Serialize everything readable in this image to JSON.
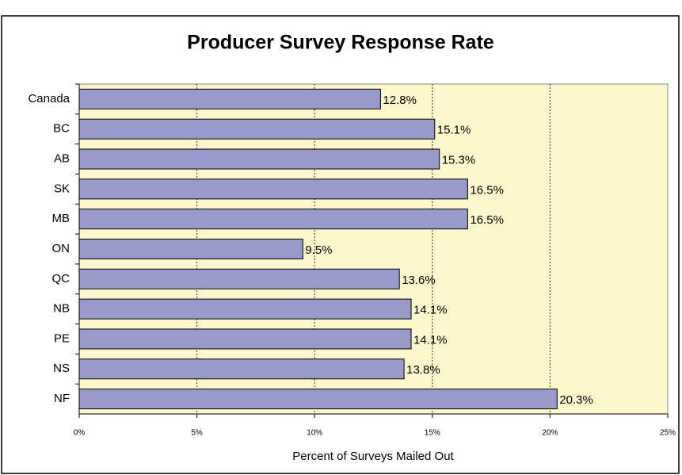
{
  "chart_data": {
    "type": "bar",
    "orientation": "horizontal",
    "title": "Producer Survey Response Rate",
    "x_label": "Percent of Surveys Mailed Out",
    "categories": [
      "Canada",
      "BC",
      "AB",
      "SK",
      "MB",
      "ON",
      "QC",
      "NB",
      "PE",
      "NS",
      "NF"
    ],
    "values": [
      12.8,
      15.1,
      15.3,
      16.5,
      16.5,
      9.5,
      13.6,
      14.1,
      14.1,
      13.8,
      20.3
    ],
    "value_labels": [
      "12.8%",
      "15.1%",
      "15.3%",
      "16.5%",
      "16.5%",
      "9.5%",
      "13.6%",
      "14.1%",
      "14.1%",
      "13.8%",
      "20.3%"
    ],
    "color": "#9999cc",
    "xlim": [
      0,
      25
    ],
    "xticks": [
      {
        "value": 0,
        "label": "0%"
      },
      {
        "value": 5,
        "label": "5%"
      },
      {
        "value": 10,
        "label": "10%"
      },
      {
        "value": 15,
        "label": "15%"
      },
      {
        "value": 20,
        "label": "20%"
      },
      {
        "value": 25,
        "label": "25%"
      }
    ],
    "grid": true
  }
}
